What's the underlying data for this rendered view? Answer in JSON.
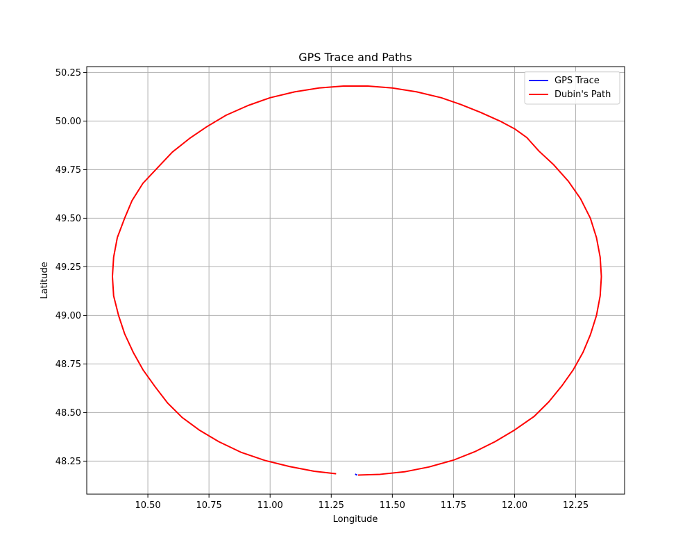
{
  "chart_data": {
    "type": "line",
    "title": "GPS Trace and Paths",
    "xlabel": "Longitude",
    "ylabel": "Latitude",
    "xlim": [
      10.25,
      12.45
    ],
    "ylim": [
      48.08,
      50.28
    ],
    "xticks": [
      10.5,
      10.75,
      11.0,
      11.25,
      11.5,
      11.75,
      12.0,
      12.25
    ],
    "xtick_labels": [
      "10.50",
      "10.75",
      "11.00",
      "11.25",
      "11.50",
      "11.75",
      "12.00",
      "12.25"
    ],
    "yticks": [
      48.25,
      48.5,
      48.75,
      49.0,
      49.25,
      49.5,
      49.75,
      50.0,
      50.25
    ],
    "ytick_labels": [
      "48.25",
      "48.50",
      "48.75",
      "49.00",
      "49.25",
      "49.50",
      "49.75",
      "50.00",
      "50.25"
    ],
    "grid": true,
    "legend_position": "top-right",
    "series": [
      {
        "name": "GPS Trace",
        "color": "#0000ff",
        "x": [
          11.348,
          11.356
        ],
        "y": [
          48.183,
          48.178
        ]
      },
      {
        "name": "Dubin's Path",
        "color": "#ff0000",
        "x": [
          11.27,
          11.18,
          11.08,
          10.98,
          10.88,
          10.79,
          10.71,
          10.64,
          10.58,
          10.53,
          10.48,
          10.44,
          10.405,
          10.38,
          10.36,
          10.355,
          10.36,
          10.375,
          10.405,
          10.435,
          10.48,
          10.54,
          10.6,
          10.67,
          10.74,
          10.82,
          10.91,
          11.0,
          11.1,
          11.2,
          11.3,
          11.4,
          11.5,
          11.6,
          11.7,
          11.78,
          11.86,
          11.94,
          12.0,
          12.05,
          12.1,
          12.16,
          12.22,
          12.27,
          12.31,
          12.335,
          12.35,
          12.355,
          12.35,
          12.335,
          12.31,
          12.28,
          12.24,
          12.195,
          12.14,
          12.08,
          12.0,
          11.92,
          11.84,
          11.75,
          11.65,
          11.55,
          11.45,
          11.36
        ],
        "y": [
          48.185,
          48.198,
          48.222,
          48.253,
          48.296,
          48.35,
          48.41,
          48.475,
          48.55,
          48.632,
          48.72,
          48.81,
          48.905,
          49.0,
          49.1,
          49.2,
          49.3,
          49.4,
          49.5,
          49.59,
          49.68,
          49.76,
          49.84,
          49.91,
          49.97,
          50.03,
          50.08,
          50.12,
          50.15,
          50.17,
          50.18,
          50.18,
          50.17,
          50.15,
          50.12,
          50.085,
          50.045,
          50.0,
          49.96,
          49.915,
          49.845,
          49.775,
          49.69,
          49.6,
          49.5,
          49.4,
          49.3,
          49.2,
          49.1,
          49.0,
          48.9,
          48.81,
          48.72,
          48.64,
          48.555,
          48.48,
          48.41,
          48.35,
          48.3,
          48.255,
          48.22,
          48.195,
          48.182,
          48.178
        ]
      }
    ]
  }
}
